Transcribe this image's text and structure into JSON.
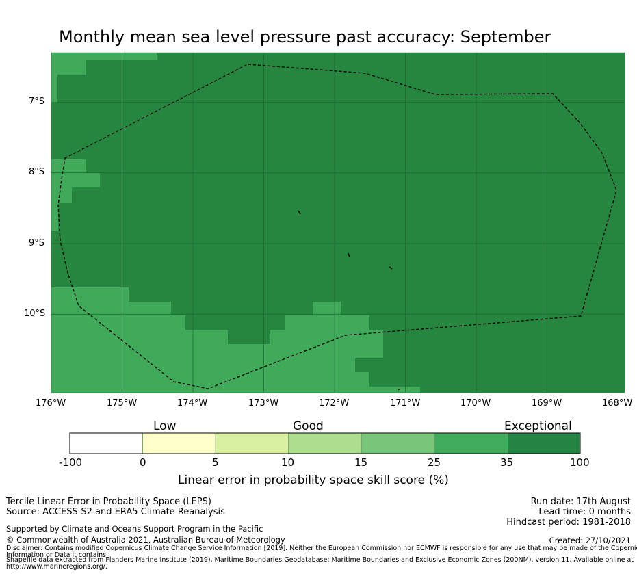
{
  "title": "Monthly mean sea level pressure past accuracy: September",
  "map": {
    "lon_ticks": [
      "176°W",
      "175°W",
      "174°W",
      "173°W",
      "172°W",
      "171°W",
      "170°W",
      "169°W",
      "168°W"
    ],
    "lat_ticks": [
      "7°S",
      "8°S",
      "9°S",
      "10°S"
    ],
    "colors": {
      "exceptional": "#26853f",
      "good_high": "#41a95a",
      "land": "#000000",
      "boundary": "#000000"
    }
  },
  "colorbar": {
    "categories": [
      "Low",
      "Good",
      "Exceptional"
    ],
    "ticks": [
      "-100",
      "0",
      "5",
      "10",
      "15",
      "25",
      "35",
      "100"
    ],
    "colors": [
      "#ffffff",
      "#ffffcc",
      "#d9f0a3",
      "#addd8e",
      "#78c679",
      "#41ab5d",
      "#238443"
    ],
    "label": "Linear error in probability space skill score (%)"
  },
  "footer": {
    "left": [
      "Tercile Linear Error in Probability Space (LEPS)",
      "Source: ACCESS-S2 and ERA5 Climate Reanalysis"
    ],
    "right": [
      "Run date: 17th August",
      "Lead time: 0 months",
      "Hindcast period: 1981-2018"
    ],
    "supported": "Supported by Climate and Oceans Support Program in the Pacific",
    "copyright": "© Commonwealth of Australia 2021, Australian Bureau of Meteorology",
    "created": "Created: 27/10/2021",
    "disclaimer1": "Disclaimer: Contains modified Copernicus Climate Change Service Information [2019]. Neither the European Commission nor ECMWF is responsible for any use that may be made of the Copernicus",
    "disclaimer2": "Information or Data it contains.",
    "shapefile1": "Shapefile data extracted from Flanders Marine Institute (2019), Maritime Boundaries Geodatabase: Maritime Boundaries and Exclusive Economic Zones (200NM), version 11. Available online at",
    "shapefile2": "http://www.marineregions.org/."
  }
}
